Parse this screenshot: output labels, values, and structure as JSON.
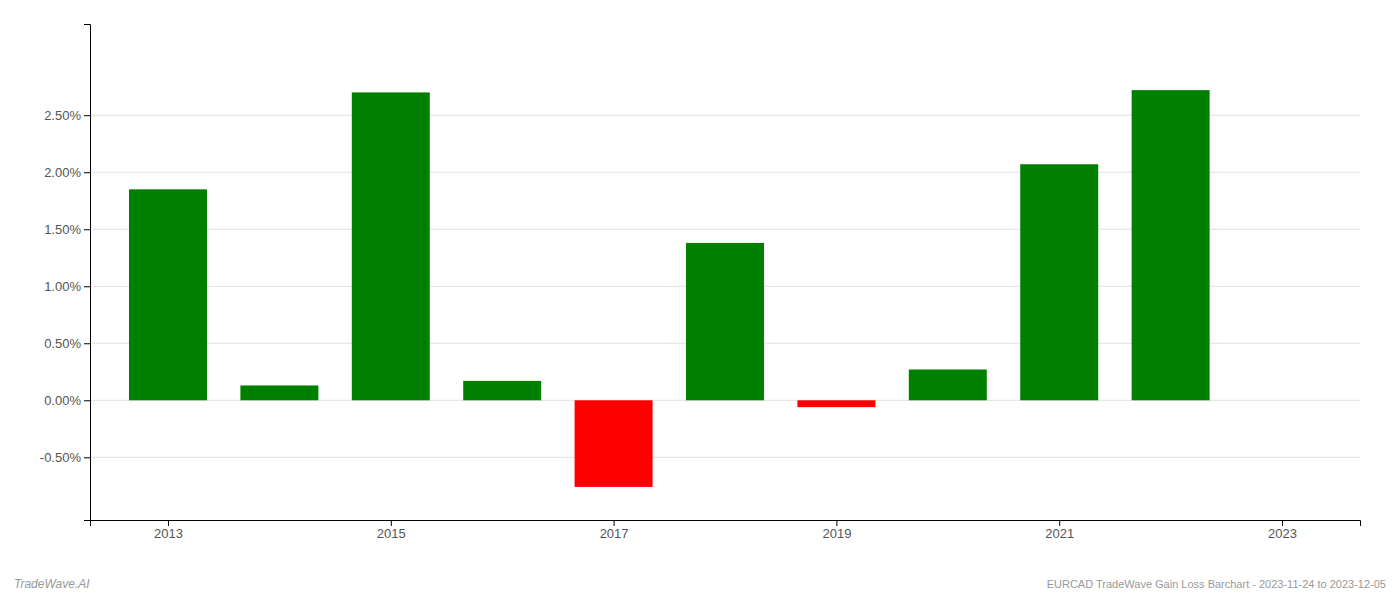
{
  "chart_data": {
    "type": "bar",
    "x": [
      2013,
      2014,
      2015,
      2016,
      2017,
      2018,
      2019,
      2020,
      2021,
      2022
    ],
    "values": [
      1.85,
      0.13,
      2.7,
      0.17,
      -0.76,
      1.38,
      -0.06,
      0.27,
      2.07,
      2.72
    ],
    "colors": [
      "#008000",
      "#008000",
      "#008000",
      "#008000",
      "#ff0000",
      "#008000",
      "#ff0000",
      "#008000",
      "#008000",
      "#008000"
    ],
    "xlim": [
      2012.3,
      2023.7
    ],
    "xticks": [
      2013,
      2015,
      2017,
      2019,
      2021,
      2023
    ],
    "ylim": [
      -1.05,
      3.3
    ],
    "yticks": [
      {
        "value": -0.5,
        "label": "-0.50%"
      },
      {
        "value": 0.0,
        "label": "0.00%"
      },
      {
        "value": 0.5,
        "label": "0.50%"
      },
      {
        "value": 1.0,
        "label": "1.00%"
      },
      {
        "value": 1.5,
        "label": "1.50%"
      },
      {
        "value": 2.0,
        "label": "2.00%"
      },
      {
        "value": 2.5,
        "label": "2.50%"
      }
    ],
    "grid": true,
    "annotations": [
      "TradeWave.AI",
      "EURCAD TradeWave Gain Loss Barchart - 2023-11-24 to 2023-12-05"
    ]
  }
}
